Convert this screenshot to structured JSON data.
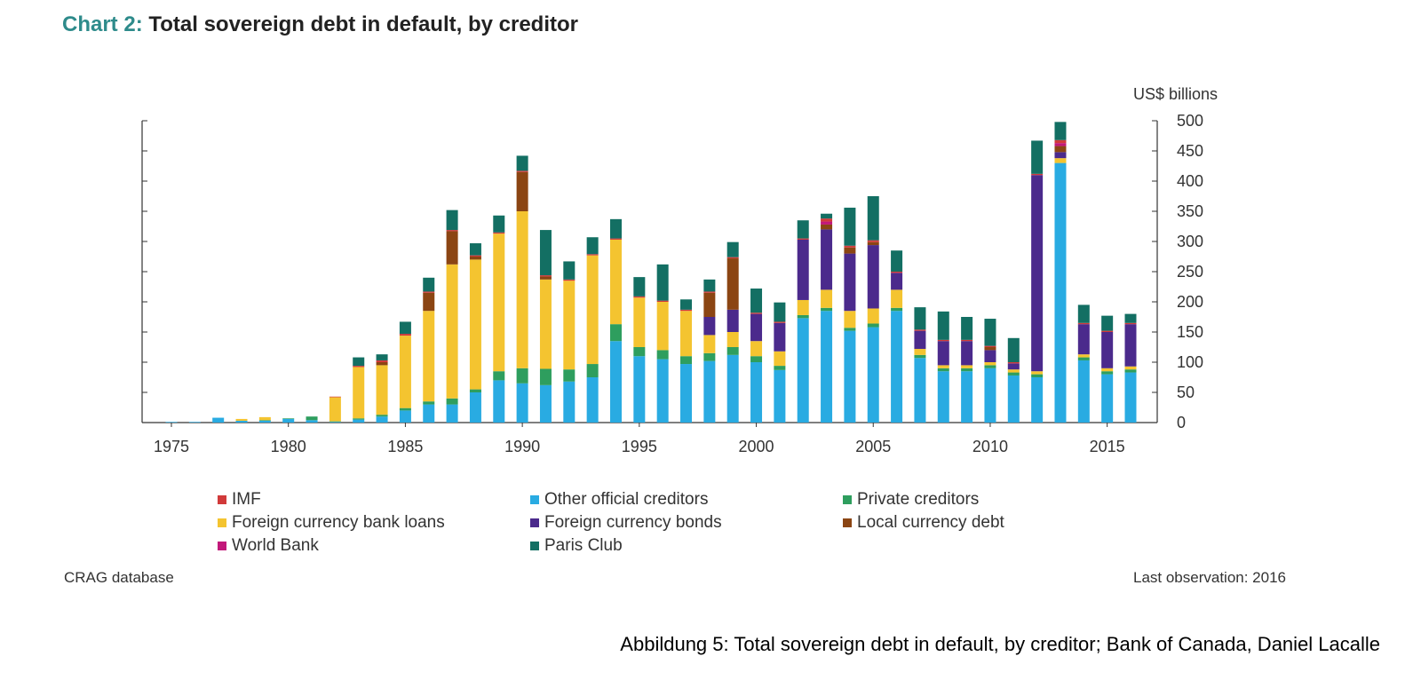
{
  "title": {
    "prefix": "Chart 2:",
    "main": "Total sovereign debt in default, by creditor"
  },
  "unit_label": "US$ billions",
  "source": "CRAG database",
  "last_observation": "Last observation: 2016",
  "caption": "Abbildung 5: Total sovereign debt in default, by creditor; Bank of Canada, Daniel Lacalle",
  "chart_data": {
    "type": "bar",
    "stacked": true,
    "title": "Total sovereign debt in default, by creditor",
    "ylabel": "US$ billions",
    "ylim": [
      0,
      500
    ],
    "yticks": [
      0,
      50,
      100,
      150,
      200,
      250,
      300,
      350,
      400,
      450,
      500
    ],
    "y_axis_side": "right",
    "xtick_labels": [
      "1975",
      "1980",
      "1985",
      "1990",
      "1995",
      "2000",
      "2005",
      "2010",
      "2015"
    ],
    "legend_position": "bottom",
    "categories": [
      "1975",
      "1976",
      "1977",
      "1978",
      "1979",
      "1980",
      "1981",
      "1982",
      "1983",
      "1984",
      "1985",
      "1986",
      "1987",
      "1988",
      "1989",
      "1990",
      "1991",
      "1992",
      "1993",
      "1994",
      "1995",
      "1996",
      "1997",
      "1998",
      "1999",
      "2000",
      "2001",
      "2002",
      "2003",
      "2004",
      "2005",
      "2006",
      "2007",
      "2008",
      "2009",
      "2010",
      "2011",
      "2012",
      "2013",
      "2014",
      "2015",
      "2016"
    ],
    "series": [
      {
        "name": "Other official creditors",
        "color": "#29abe2",
        "values": [
          1,
          1,
          8,
          3,
          3,
          6,
          4,
          1,
          5,
          10,
          20,
          30,
          30,
          50,
          70,
          65,
          62,
          68,
          75,
          135,
          110,
          105,
          97,
          102,
          112,
          100,
          87,
          173,
          185,
          152,
          158,
          185,
          107,
          85,
          85,
          90,
          78,
          75,
          430,
          103,
          80,
          83
        ]
      },
      {
        "name": "Private creditors",
        "color": "#2e9e5e",
        "values": [
          0,
          0,
          0,
          0,
          1,
          1,
          6,
          1,
          2,
          3,
          4,
          5,
          10,
          5,
          15,
          25,
          27,
          20,
          22,
          28,
          15,
          15,
          13,
          13,
          13,
          10,
          7,
          5,
          5,
          5,
          6,
          5,
          5,
          5,
          5,
          5,
          5,
          5,
          0,
          5,
          5,
          5
        ]
      },
      {
        "name": "Foreign currency bank loans",
        "color": "#f4c430",
        "values": [
          0,
          0,
          0,
          3,
          5,
          0,
          0,
          40,
          85,
          82,
          120,
          150,
          222,
          215,
          228,
          260,
          148,
          147,
          180,
          140,
          82,
          80,
          75,
          30,
          25,
          25,
          24,
          25,
          30,
          28,
          25,
          30,
          10,
          5,
          5,
          5,
          5,
          5,
          8,
          5,
          5,
          5
        ]
      },
      {
        "name": "Foreign currency bonds",
        "color": "#4b2a8c",
        "values": [
          0,
          0,
          0,
          0,
          0,
          0,
          0,
          0,
          0,
          0,
          0,
          0,
          0,
          0,
          0,
          0,
          0,
          0,
          0,
          0,
          0,
          0,
          0,
          30,
          37,
          45,
          47,
          100,
          100,
          95,
          105,
          28,
          30,
          40,
          40,
          20,
          10,
          325,
          10,
          50,
          60,
          70
        ]
      },
      {
        "name": "Local currency debt",
        "color": "#8b4513",
        "values": [
          0,
          0,
          0,
          0,
          0,
          0,
          0,
          0,
          0,
          5,
          0,
          30,
          55,
          5,
          0,
          65,
          5,
          0,
          0,
          0,
          0,
          0,
          0,
          40,
          85,
          0,
          0,
          0,
          8,
          10,
          5,
          0,
          0,
          0,
          0,
          5,
          0,
          0,
          10,
          0,
          0,
          0
        ]
      },
      {
        "name": "World Bank",
        "color": "#c2187a",
        "values": [
          0,
          0,
          0,
          0,
          0,
          0,
          0,
          0,
          0,
          0,
          0,
          0,
          0,
          0,
          0,
          0,
          0,
          0,
          0,
          0,
          0,
          0,
          0,
          0,
          0,
          0,
          0,
          0,
          5,
          0,
          0,
          0,
          0,
          0,
          0,
          0,
          0,
          0,
          5,
          0,
          0,
          0
        ]
      },
      {
        "name": "IMF",
        "color": "#d13a3a",
        "values": [
          0,
          0,
          0,
          0,
          0,
          0,
          0,
          1,
          2,
          3,
          3,
          2,
          2,
          2,
          2,
          2,
          2,
          2,
          2,
          2,
          2,
          2,
          2,
          2,
          2,
          2,
          2,
          2,
          5,
          3,
          3,
          2,
          2,
          2,
          2,
          2,
          2,
          2,
          5,
          2,
          2,
          2
        ]
      },
      {
        "name": "Paris Club",
        "color": "#136f63",
        "values": [
          0,
          0,
          0,
          0,
          0,
          0,
          0,
          0,
          14,
          10,
          20,
          23,
          33,
          20,
          28,
          25,
          75,
          30,
          28,
          32,
          32,
          60,
          17,
          20,
          25,
          40,
          32,
          30,
          8,
          63,
          73,
          35,
          37,
          47,
          38,
          45,
          40,
          55,
          30,
          30,
          25,
          15
        ]
      }
    ]
  },
  "legend": [
    {
      "label": "IMF",
      "color": "#d13a3a"
    },
    {
      "label": "Other official creditors",
      "color": "#29abe2"
    },
    {
      "label": "Private creditors",
      "color": "#2e9e5e"
    },
    {
      "label": "Foreign currency bank loans",
      "color": "#f4c430"
    },
    {
      "label": "Foreign currency bonds",
      "color": "#4b2a8c"
    },
    {
      "label": "Local currency debt",
      "color": "#8b4513"
    },
    {
      "label": "World Bank",
      "color": "#c2187a"
    },
    {
      "label": "Paris Club",
      "color": "#136f63"
    }
  ]
}
